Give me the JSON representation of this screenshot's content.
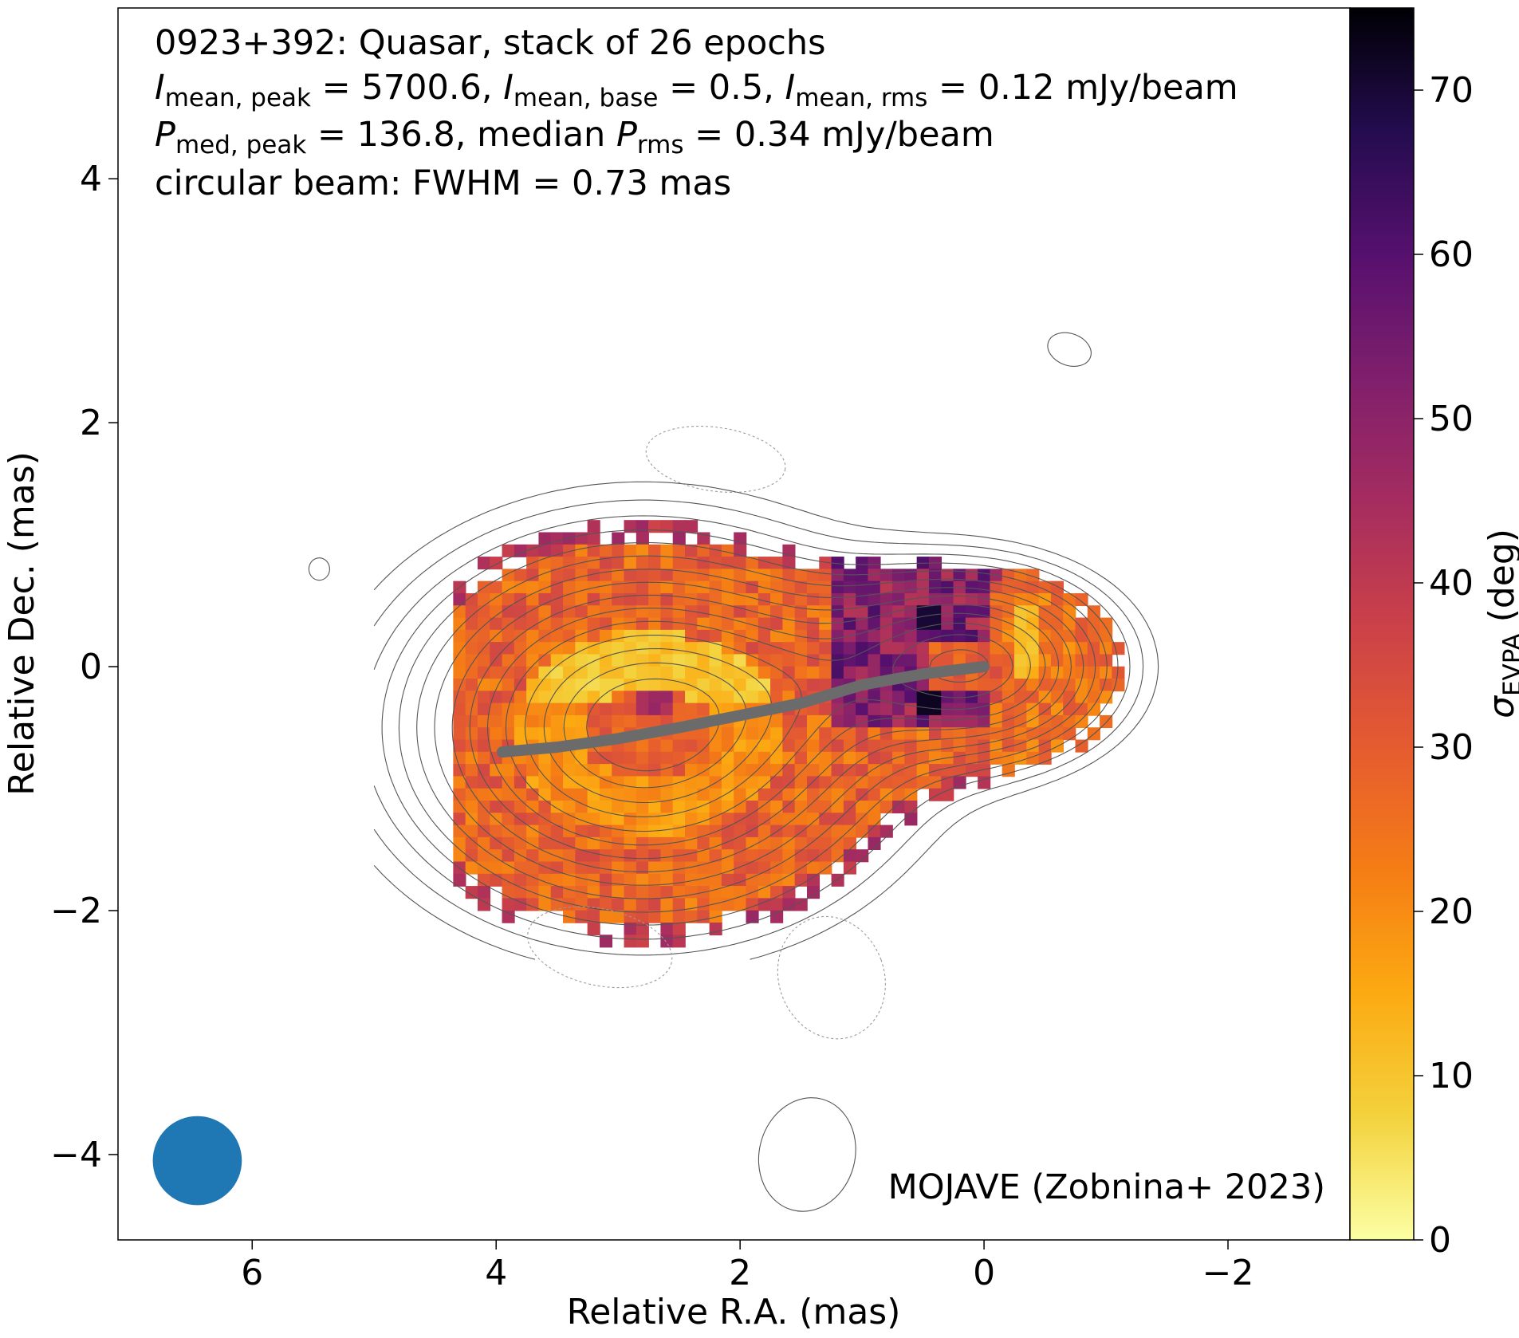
{
  "chart_data": {
    "type": "heatmap",
    "source_name": "0923+392",
    "source_class": "Quasar",
    "stack_label": "stack of 26 epochs",
    "annotations": {
      "line1": "0923+392: Quasar, stack of 26 epochs",
      "i_peak_value": "5700.6",
      "i_base_value": "0.5",
      "i_rms_value": "0.12",
      "p_peak_value": "136.8",
      "p_rms_value": "0.34",
      "unit": "mJy/beam",
      "beam_line": "circular beam: FWHM = 0.73 mas",
      "credit": "MOJAVE (Zobnina+ 2023)"
    },
    "symbols": {
      "I": "I",
      "P": "P",
      "sub_mean_peak": "mean, peak",
      "sub_mean_base": "mean, base",
      "sub_mean_rms": "mean, rms",
      "sub_med_peak": "med, peak",
      "sub_rms": "rms",
      "eq": " = ",
      "comma": ", ",
      "median": ", median "
    },
    "xlabel": "Relative R.A. (mas)",
    "ylabel": "Relative Dec. (mas)",
    "colorbar_label_symbol": "σ",
    "colorbar_label_sub": "EVPA",
    "colorbar_label_unit": " (deg)",
    "xlim": [
      7.1,
      -3.0
    ],
    "ylim": [
      -4.7,
      5.4
    ],
    "xticks": [
      6,
      4,
      2,
      0,
      -2
    ],
    "xtick_labels": [
      "6",
      "4",
      "2",
      "0",
      "−2"
    ],
    "yticks": [
      4,
      2,
      0,
      -2,
      -4
    ],
    "ytick_labels": [
      "4",
      "2",
      "0",
      "−2",
      "−4"
    ],
    "colorbar_range": [
      0,
      75
    ],
    "colorbar_ticks": [
      0,
      10,
      20,
      30,
      40,
      50,
      60,
      70
    ],
    "colorbar_tick_labels": [
      "0",
      "10",
      "20",
      "30",
      "40",
      "50",
      "60",
      "70"
    ],
    "colormap": "inferno_r",
    "ridge_line": {
      "x": [
        3.95,
        3.5,
        3.0,
        2.5,
        2.0,
        1.5,
        1.0,
        0.5,
        0.0
      ],
      "y": [
        -0.7,
        -0.66,
        -0.59,
        -0.5,
        -0.4,
        -0.3,
        -0.15,
        -0.06,
        0.0
      ]
    },
    "beam": {
      "fwhm_mas": 0.73,
      "center": [
        6.45,
        -4.05
      ]
    },
    "colors": {
      "ridge": "#6b6b6b",
      "beam": "#1f77b4",
      "contour": "#555555",
      "negative_contour": "#9a9a9a"
    }
  }
}
